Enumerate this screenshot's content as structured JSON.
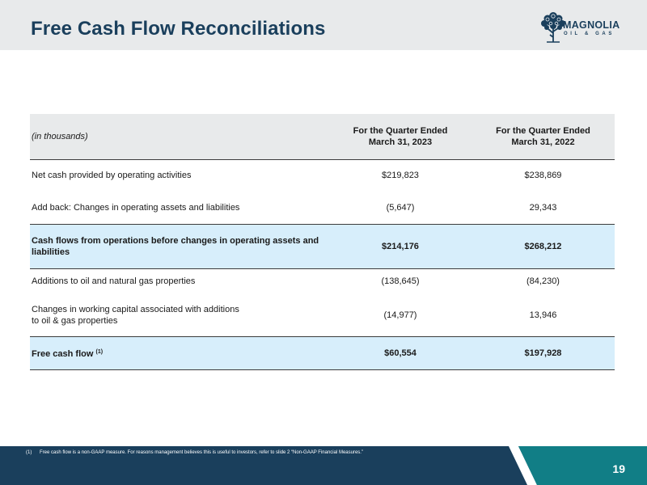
{
  "header": {
    "title": "Free Cash Flow Reconciliations",
    "logo": {
      "name": "MAGNOLIA",
      "subtext": "OIL & GAS",
      "icon": "magnolia-tree-icon",
      "color": "#1a3f5c"
    }
  },
  "table": {
    "units_label": "(in thousands)",
    "columns": [
      {
        "line1": "For the Quarter Ended",
        "line2": "March 31, 2023"
      },
      {
        "line1": "For the Quarter Ended",
        "line2": "March 31, 2022"
      }
    ],
    "rows": [
      {
        "label": "Net cash provided by operating activities",
        "q1_2023": "$219,823",
        "q1_2022": "$238,869"
      },
      {
        "label": "Add back: Changes in operating assets and liabilities",
        "q1_2023": "(5,647)",
        "q1_2022": "29,343"
      },
      {
        "label_line1": "Cash flows from operations before changes in operating assets and",
        "label_line2": "liabilities",
        "q1_2023": "$214,176",
        "q1_2022": "$268,212"
      },
      {
        "label": "Additions to oil and natural gas properties",
        "q1_2023": "(138,645)",
        "q1_2022": "(84,230)"
      },
      {
        "label_line1": "Changes in working capital associated with additions",
        "label_line2": "to oil & gas properties",
        "q1_2023": "(14,977)",
        "q1_2022": "13,946"
      },
      {
        "label": "Free cash flow",
        "footnote_ref": "(1)",
        "q1_2023": "$60,554",
        "q1_2022": "$197,928"
      }
    ]
  },
  "footer": {
    "footnote_marker": "(1)",
    "footnote_text": "Free cash flow is a non-GAAP measure. For reasons management believes this is useful to investors, refer to slide 2 “Non-GAAP Financial Measures.”",
    "page_number": "19"
  },
  "colors": {
    "navy": "#1a3f5c",
    "teal": "#117e86",
    "header_gray": "#e8eaeb",
    "highlight_blue": "#d7eefb"
  }
}
